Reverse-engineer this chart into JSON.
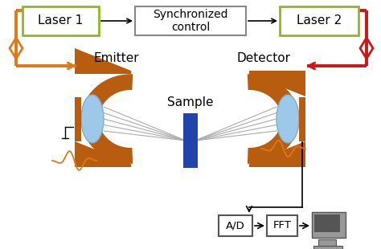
{
  "bg_color": "#ffffff",
  "orange": "#e07818",
  "red": "#cc1515",
  "brown": "#b85c10",
  "brown_dark": "#8b4008",
  "blue_sample": "#2244aa",
  "light_blue": "#9ec8e8",
  "green_border": "#8dba20",
  "gray_border": "#888888",
  "arrow_gray": "#555555",
  "comp_gray": "#999999",
  "comp_dark": "#555555",
  "fig_w": 4.74,
  "fig_h": 3.1,
  "dpi": 100,
  "laser1_label": "Laser 1",
  "laser2_label": "Laser 2",
  "sync_label": "Synchronized\ncontrol",
  "emitter_label": "Emitter",
  "detector_label": "Detector",
  "sample_label": "Sample",
  "ad_label": "A/D",
  "fft_label": "FFT"
}
